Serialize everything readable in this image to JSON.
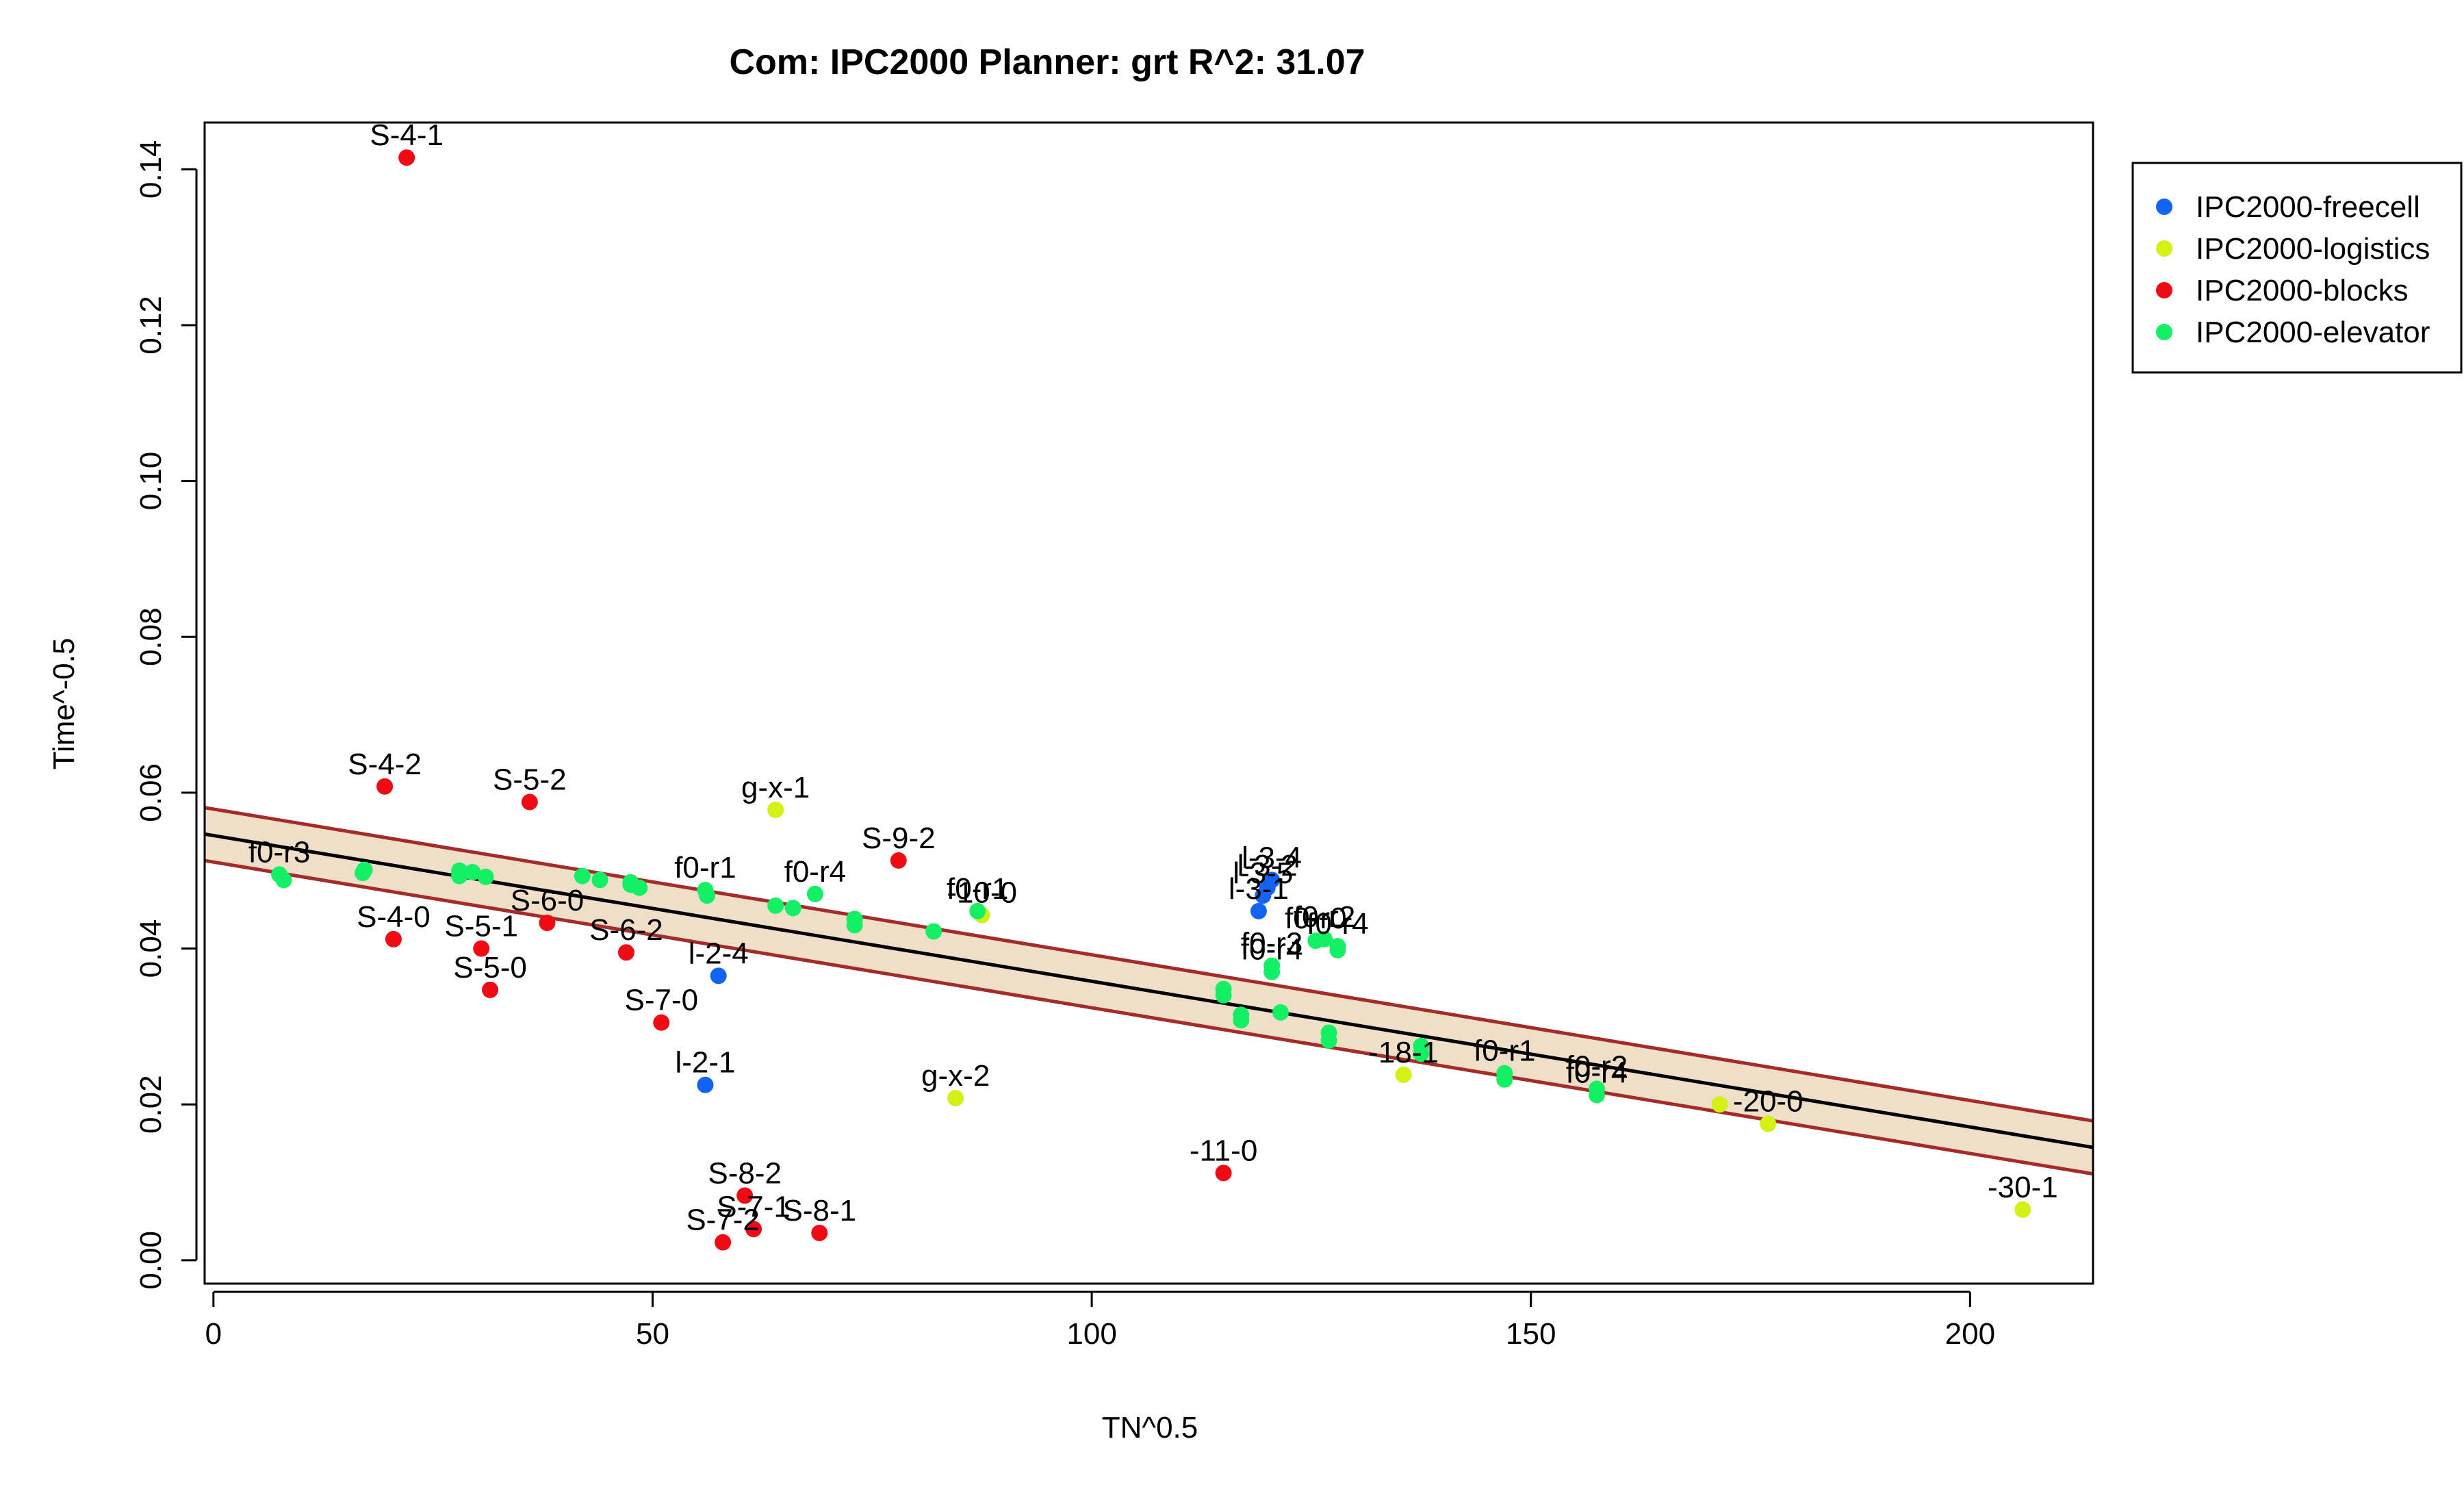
{
  "chart_data": {
    "type": "scatter",
    "title": "Com: IPC2000 Planner: grt R^2: 31.07",
    "xlabel": "TN^0.5",
    "ylabel": "Time^-0.5",
    "xlim": [
      -1,
      214
    ],
    "ylim": [
      -0.003,
      0.146
    ],
    "xticks": [
      0,
      50,
      100,
      150,
      200
    ],
    "yticks": [
      0.0,
      0.02,
      0.04,
      0.06,
      0.08,
      0.1,
      0.12,
      0.14
    ],
    "xtick_labels": [
      "0",
      "50",
      "100",
      "150",
      "200"
    ],
    "ytick_labels": [
      "0.00",
      "0.02",
      "0.04",
      "0.06",
      "0.08",
      "0.10",
      "0.12",
      "0.14"
    ],
    "grid": false,
    "legend_position": "top-right",
    "regression": {
      "intercept": 0.0545,
      "slope": -0.000187,
      "band_upper_intercept": 0.0579,
      "band_lower_intercept": 0.0511,
      "line_color": "#000000",
      "band_fill": "#f0dfc8",
      "band_edge_color": "#a52a2a"
    },
    "series": [
      {
        "name": "IPC2000-freecell",
        "color": "#1464f4",
        "points": [
          {
            "x": 57.5,
            "y": 0.0365,
            "label": "l-2-4"
          },
          {
            "x": 56.0,
            "y": 0.0225,
            "label": "l-2-1"
          },
          {
            "x": 119.0,
            "y": 0.0448,
            "label": "l-3-1"
          },
          {
            "x": 119.5,
            "y": 0.0468,
            "label": "l-3-5"
          },
          {
            "x": 120.0,
            "y": 0.0478,
            "label": "l-3-2"
          },
          {
            "x": 120.5,
            "y": 0.0488,
            "label": "l-3-4"
          }
        ]
      },
      {
        "name": "IPC2000-logistics",
        "color": "#d4f014",
        "points": [
          {
            "x": 64.0,
            "y": 0.0578,
            "label": "g-x-1"
          },
          {
            "x": 87.5,
            "y": 0.0443,
            "label": "-10-0"
          },
          {
            "x": 84.5,
            "y": 0.0208,
            "label": "g-x-2"
          },
          {
            "x": 135.5,
            "y": 0.0238,
            "label": "-18-1"
          },
          {
            "x": 171.5,
            "y": 0.02,
            "label": ""
          },
          {
            "x": 177.0,
            "y": 0.0175,
            "label": "-20-0"
          },
          {
            "x": 206.0,
            "y": 0.0065,
            "label": "-30-1"
          }
        ]
      },
      {
        "name": "IPC2000-blocks",
        "color": "#f00a14",
        "points": [
          {
            "x": 22.0,
            "y": 0.1415,
            "label": "S-4-1"
          },
          {
            "x": 19.5,
            "y": 0.0608,
            "label": "S-4-2"
          },
          {
            "x": 20.5,
            "y": 0.0412,
            "label": "S-4-0"
          },
          {
            "x": 36.0,
            "y": 0.0588,
            "label": "S-5-2"
          },
          {
            "x": 30.5,
            "y": 0.04,
            "label": "S-5-1"
          },
          {
            "x": 31.5,
            "y": 0.0347,
            "label": "S-5-0"
          },
          {
            "x": 38.0,
            "y": 0.0433,
            "label": "S-6-0"
          },
          {
            "x": 47.0,
            "y": 0.0395,
            "label": "S-6-2"
          },
          {
            "x": 51.0,
            "y": 0.0305,
            "label": "S-7-0"
          },
          {
            "x": 78.0,
            "y": 0.0513,
            "label": "S-9-2"
          },
          {
            "x": 60.5,
            "y": 0.0083,
            "label": "S-8-2"
          },
          {
            "x": 61.5,
            "y": 0.004,
            "label": "S-7-1"
          },
          {
            "x": 58.0,
            "y": 0.0023,
            "label": "S-7-2"
          },
          {
            "x": 69.0,
            "y": 0.0035,
            "label": "S-8-1"
          },
          {
            "x": 115.0,
            "y": 0.0112,
            "label": "-11-0"
          }
        ]
      },
      {
        "name": "IPC2000-elevator",
        "color": "#14f064",
        "points": [
          {
            "x": 7.5,
            "y": 0.0495,
            "label": "f0-r3"
          },
          {
            "x": 8.0,
            "y": 0.0488,
            "label": ""
          },
          {
            "x": 17.0,
            "y": 0.0497,
            "label": ""
          },
          {
            "x": 17.2,
            "y": 0.0501,
            "label": ""
          },
          {
            "x": 28.0,
            "y": 0.0493,
            "label": ""
          },
          {
            "x": 29.5,
            "y": 0.0498,
            "label": ""
          },
          {
            "x": 31.0,
            "y": 0.0492,
            "label": ""
          },
          {
            "x": 28.0,
            "y": 0.05,
            "label": ""
          },
          {
            "x": 42.0,
            "y": 0.0493,
            "label": ""
          },
          {
            "x": 44.0,
            "y": 0.0488,
            "label": ""
          },
          {
            "x": 47.5,
            "y": 0.0485,
            "label": ""
          },
          {
            "x": 48.5,
            "y": 0.0478,
            "label": ""
          },
          {
            "x": 47.5,
            "y": 0.0482,
            "label": ""
          },
          {
            "x": 56.0,
            "y": 0.0475,
            "label": "f0-r1"
          },
          {
            "x": 56.2,
            "y": 0.0468,
            "label": ""
          },
          {
            "x": 64.0,
            "y": 0.0455,
            "label": ""
          },
          {
            "x": 66.0,
            "y": 0.0452,
            "label": ""
          },
          {
            "x": 68.5,
            "y": 0.047,
            "label": "f0-r4"
          },
          {
            "x": 73.0,
            "y": 0.0438,
            "label": ""
          },
          {
            "x": 73.0,
            "y": 0.043,
            "label": ""
          },
          {
            "x": 82.0,
            "y": 0.0422,
            "label": ""
          },
          {
            "x": 87.0,
            "y": 0.0448,
            "label": "f0-r1"
          },
          {
            "x": 115.0,
            "y": 0.0348,
            "label": ""
          },
          {
            "x": 115.0,
            "y": 0.034,
            "label": ""
          },
          {
            "x": 117.0,
            "y": 0.0315,
            "label": ""
          },
          {
            "x": 117.0,
            "y": 0.0308,
            "label": ""
          },
          {
            "x": 120.5,
            "y": 0.0378,
            "label": "f0-r3"
          },
          {
            "x": 120.5,
            "y": 0.037,
            "label": "f0-r4"
          },
          {
            "x": 121.5,
            "y": 0.0318,
            "label": ""
          },
          {
            "x": 125.5,
            "y": 0.041,
            "label": "f0-r0"
          },
          {
            "x": 126.5,
            "y": 0.0412,
            "label": "f0-r2"
          },
          {
            "x": 127.0,
            "y": 0.0292,
            "label": ""
          },
          {
            "x": 127.0,
            "y": 0.0282,
            "label": ""
          },
          {
            "x": 128.0,
            "y": 0.0403,
            "label": "f0-r4"
          },
          {
            "x": 128.0,
            "y": 0.0398,
            "label": ""
          },
          {
            "x": 137.5,
            "y": 0.0275,
            "label": ""
          },
          {
            "x": 137.5,
            "y": 0.0265,
            "label": ""
          },
          {
            "x": 147.0,
            "y": 0.024,
            "label": "f0-r1"
          },
          {
            "x": 147.0,
            "y": 0.0232,
            "label": ""
          },
          {
            "x": 157.5,
            "y": 0.022,
            "label": "f0-r2"
          },
          {
            "x": 157.5,
            "y": 0.0212,
            "label": "f0-r4"
          }
        ]
      }
    ]
  }
}
